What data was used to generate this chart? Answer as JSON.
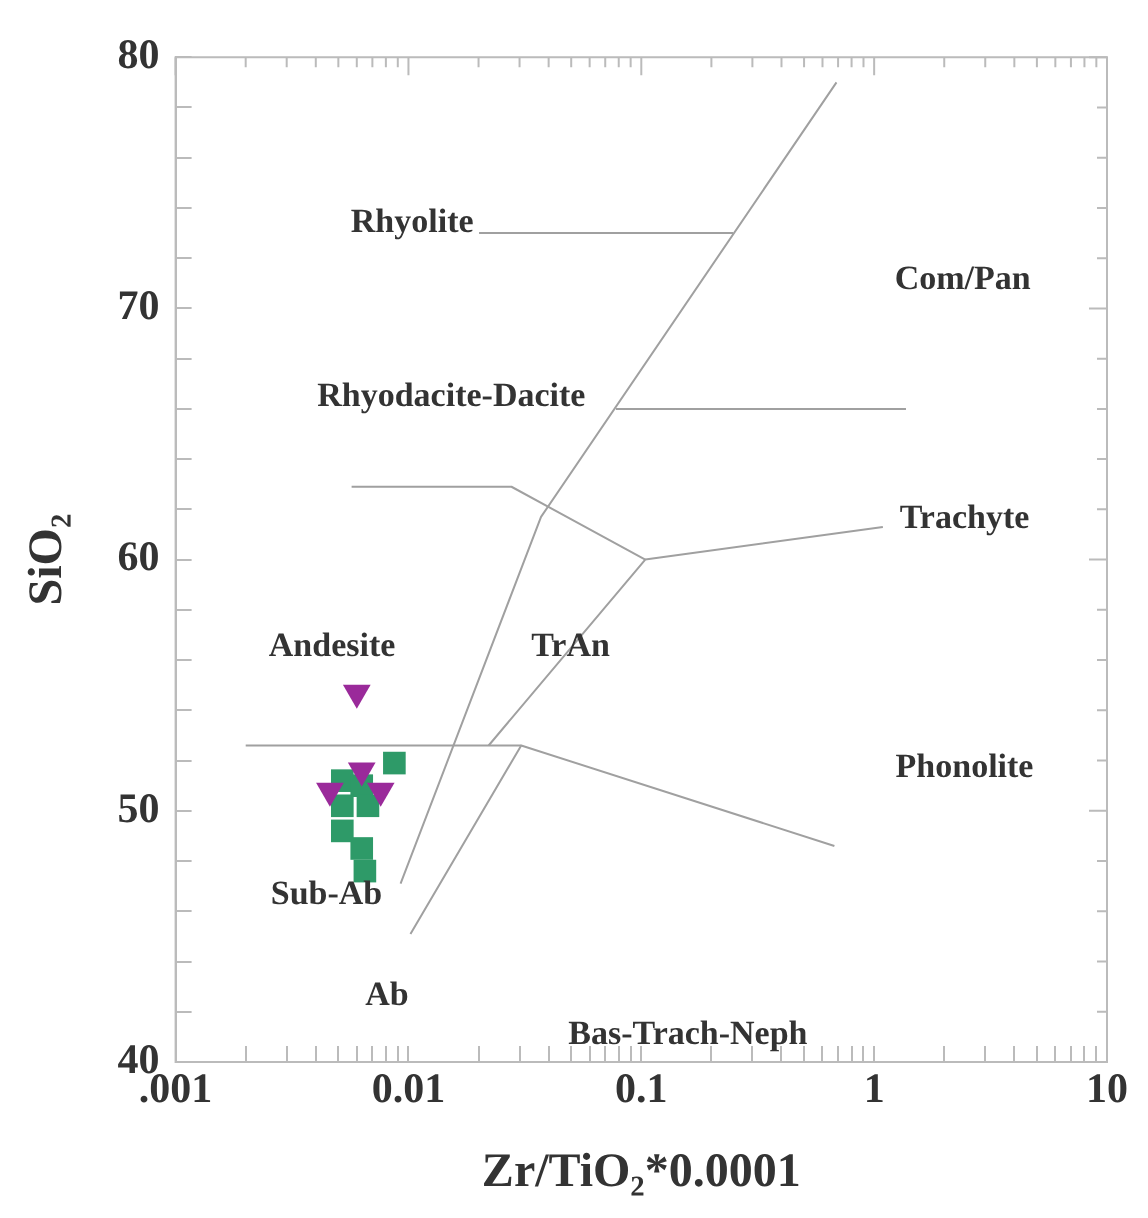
{
  "chart_data": {
    "type": "scatter",
    "xlabel": "Zr/TiO₂*0.0001",
    "ylabel": "SiO₂",
    "log": "x",
    "grid": false,
    "legend": false,
    "xlim": [
      0.001,
      10
    ],
    "ylim": [
      40,
      80
    ],
    "xticks": [
      {
        "value": 0.001,
        "label": ".001"
      },
      {
        "value": 0.002,
        "label": null
      },
      {
        "value": 0.003,
        "label": null
      },
      {
        "value": 0.004,
        "label": null
      },
      {
        "value": 0.005,
        "label": null
      },
      {
        "value": 0.006,
        "label": null
      },
      {
        "value": 0.007,
        "label": null
      },
      {
        "value": 0.008,
        "label": null
      },
      {
        "value": 0.009,
        "label": null
      },
      {
        "value": 0.01,
        "label": "0.01"
      },
      {
        "value": 0.02,
        "label": null
      },
      {
        "value": 0.03,
        "label": null
      },
      {
        "value": 0.04,
        "label": null
      },
      {
        "value": 0.05,
        "label": null
      },
      {
        "value": 0.06,
        "label": null
      },
      {
        "value": 0.07,
        "label": null
      },
      {
        "value": 0.08,
        "label": null
      },
      {
        "value": 0.09,
        "label": null
      },
      {
        "value": 0.1,
        "label": "0.1"
      },
      {
        "value": 0.2,
        "label": null
      },
      {
        "value": 0.3,
        "label": null
      },
      {
        "value": 0.4,
        "label": null
      },
      {
        "value": 0.5,
        "label": null
      },
      {
        "value": 0.6,
        "label": null
      },
      {
        "value": 0.7,
        "label": null
      },
      {
        "value": 0.8,
        "label": null
      },
      {
        "value": 0.9,
        "label": null
      },
      1,
      {
        "value": 2,
        "label": null
      },
      {
        "value": 3,
        "label": null
      },
      {
        "value": 4,
        "label": null
      },
      {
        "value": 5,
        "label": null
      },
      {
        "value": 6,
        "label": null
      },
      {
        "value": 7,
        "label": null
      },
      {
        "value": 8,
        "label": null
      },
      {
        "value": 9,
        "label": null
      },
      10
    ],
    "yticks": [
      40,
      {
        "value": 42,
        "label": null
      },
      {
        "value": 44,
        "label": null
      },
      {
        "value": 46,
        "label": null
      },
      {
        "value": 48,
        "label": null
      },
      50,
      {
        "value": 52,
        "label": null
      },
      {
        "value": 54,
        "label": null
      },
      {
        "value": 56,
        "label": null
      },
      {
        "value": 58,
        "label": null
      },
      60,
      {
        "value": 62,
        "label": null
      },
      {
        "value": 64,
        "label": null
      },
      {
        "value": 66,
        "label": null
      },
      {
        "value": 68,
        "label": null
      },
      70,
      {
        "value": 72,
        "label": null
      },
      {
        "value": 74,
        "label": null
      },
      {
        "value": 76,
        "label": null
      },
      {
        "value": 78,
        "label": null
      },
      80
    ],
    "series": [
      {
        "type": "line",
        "color": "#a0a0a0",
        "marker": "none",
        "x": [
          0.00925,
          0.0371,
          0.689
        ],
        "values": [
          47.1,
          61.7,
          79.0
        ]
      },
      {
        "type": "line",
        "color": "#a0a0a0",
        "marker": "none",
        "x": [
          0.0102,
          0.0305,
          0.675
        ],
        "values": [
          45.1,
          52.6,
          48.6
        ]
      },
      {
        "type": "line",
        "color": "#a0a0a0",
        "marker": "none",
        "x": [
          0.002,
          0.0305
        ],
        "values": [
          52.6,
          52.6
        ]
      },
      {
        "type": "line",
        "color": "#a0a0a0",
        "marker": "none",
        "x": [
          0.0221,
          0.104,
          1.09
        ],
        "values": [
          52.6,
          60.0,
          61.3
        ]
      },
      {
        "type": "line",
        "color": "#a0a0a0",
        "marker": "none",
        "x": [
          0.0057,
          0.0277,
          0.104
        ],
        "values": [
          62.9,
          62.9,
          60.0
        ]
      },
      {
        "type": "line",
        "color": "#a0a0a0",
        "marker": "none",
        "x": [
          0.0201,
          0.248
        ],
        "values": [
          73.0,
          73.0
        ]
      },
      {
        "type": "line",
        "color": "#a0a0a0",
        "marker": "none",
        "x": [
          0.0778,
          1.37
        ],
        "values": [
          66.0,
          66.0
        ]
      },
      {
        "type": "scatter",
        "color": "#9a2a9a",
        "marker": "triangle",
        "x": [
          0.006,
          0.0063,
          0.0046,
          0.0076
        ],
        "values": [
          54.7,
          51.6,
          50.8,
          50.8
        ]
      },
      {
        "type": "scatter",
        "color": "#2e9a68",
        "marker": "square",
        "x": [
          0.0087,
          0.0052,
          0.0063,
          0.0052,
          0.0067,
          0.0063,
          0.0065,
          0.0052
        ],
        "values": [
          51.9,
          51.2,
          51.0,
          50.2,
          50.2,
          48.5,
          47.6,
          49.2
        ]
      }
    ],
    "annotations": [
      "Rhyolite",
      "Com/Pan",
      "Rhyodacite-Dacite",
      "Trachyte",
      "Andesite",
      "TrAn",
      "Phonolite",
      "Sub-Ab",
      "Ab",
      "Bas-Trach-Neph"
    ]
  }
}
